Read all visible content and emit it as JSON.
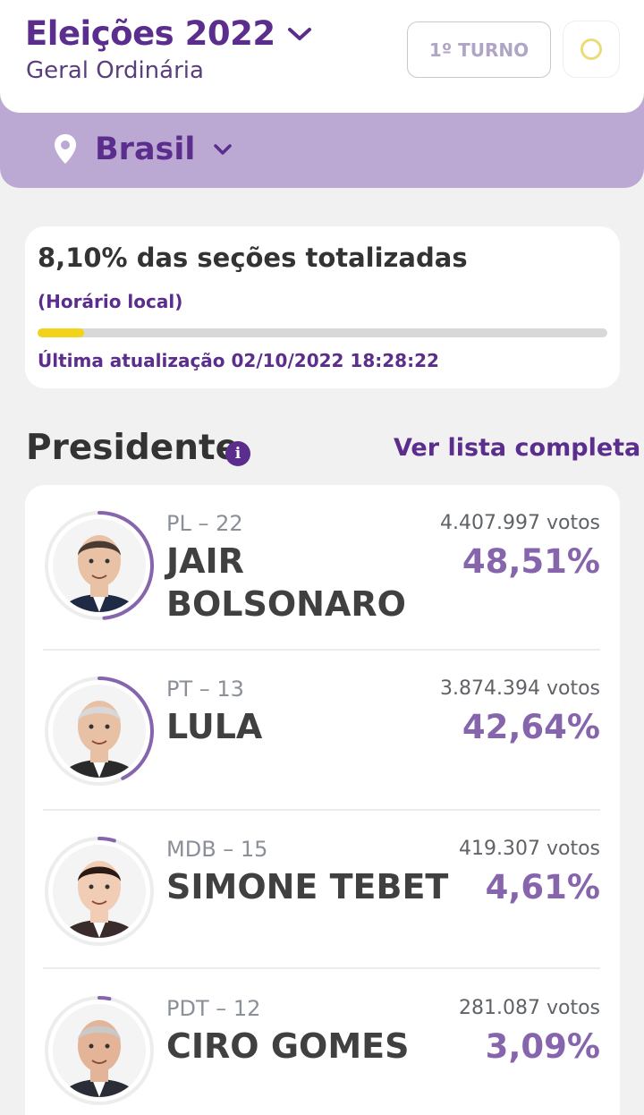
{
  "header": {
    "title": "Eleições 2022",
    "subtitle": "Geral Ordinária",
    "turno_label": "1º TURNO"
  },
  "location": {
    "name": "Brasil"
  },
  "progress": {
    "percent_text": "8,10% das seções totalizadas",
    "percent": 8.1,
    "local_time_label": "(Horário local)",
    "updated_text": "Última atualização 02/10/2022 18:28:22"
  },
  "section": {
    "title": "Presidente",
    "see_all_label": "Ver lista completa"
  },
  "candidates": [
    {
      "party": "PL – 22",
      "name_lines": [
        "JAIR",
        "BOLSONARO"
      ],
      "votes": "4.407.997 votos",
      "percent_text": "48,51%",
      "percent": 48.51
    },
    {
      "party": "PT – 13",
      "name_lines": [
        "LULA"
      ],
      "votes": "3.874.394 votos",
      "percent_text": "42,64%",
      "percent": 42.64
    },
    {
      "party": "MDB – 15",
      "name_lines": [
        "SIMONE TEBET"
      ],
      "votes": "419.307 votos",
      "percent_text": "4,61%",
      "percent": 4.61
    },
    {
      "party": "PDT – 12",
      "name_lines": [
        "CIRO GOMES"
      ],
      "votes": "281.087 votos",
      "percent_text": "3,09%",
      "percent": 3.09
    }
  ],
  "colors": {
    "accent": "#5b2d8c",
    "percent": "#8665ad",
    "band": "#bba8d3",
    "progress": "#f3d21a"
  }
}
